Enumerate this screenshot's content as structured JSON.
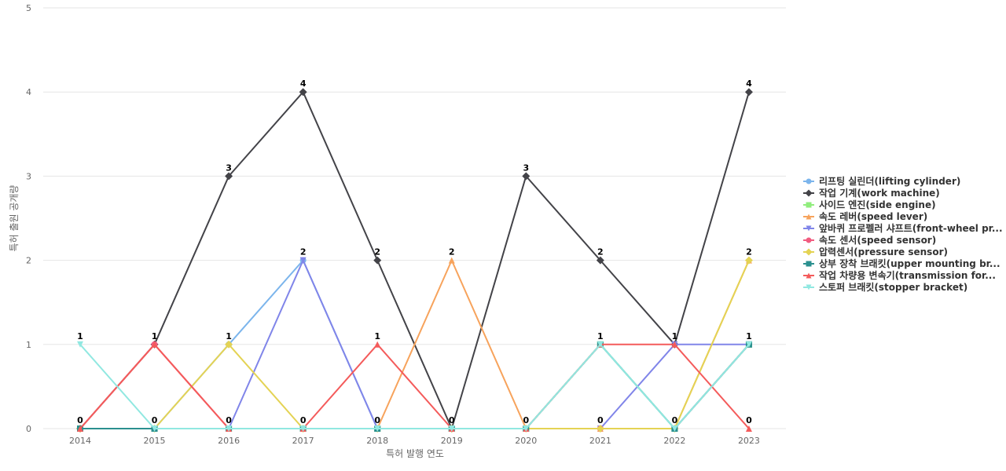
{
  "chart_data": {
    "type": "line",
    "xlabel": "특허 발행 연도",
    "ylabel": "특허 출원 공개량",
    "x": [
      "2014",
      "2015",
      "2016",
      "2017",
      "2018",
      "2019",
      "2020",
      "2021",
      "2022",
      "2023"
    ],
    "ylim": [
      0,
      5
    ],
    "yticks": [
      0,
      1,
      2,
      3,
      4,
      5
    ],
    "grid": true,
    "legend_position": "right",
    "series": [
      {
        "name": "리프팅 실린더(lifting cylinder)",
        "color": "#7cb5ec",
        "marker": "circle",
        "values": [
          0,
          0,
          1,
          2,
          0,
          0,
          0,
          1,
          0,
          1
        ]
      },
      {
        "name": "작업 기계(work machine)",
        "color": "#434348",
        "marker": "diamond",
        "values": [
          0,
          1,
          3,
          4,
          2,
          0,
          3,
          2,
          1,
          4
        ]
      },
      {
        "name": "사이드 엔진(side engine)",
        "color": "#90ed7d",
        "marker": "square",
        "values": [
          0,
          0,
          0,
          0,
          0,
          0,
          0,
          1,
          0,
          1
        ]
      },
      {
        "name": "속도 레버(speed lever)",
        "color": "#f7a35c",
        "marker": "triangle",
        "values": [
          0,
          0,
          0,
          0,
          0,
          2,
          0,
          0,
          0,
          2
        ]
      },
      {
        "name": "앞바퀴 프로펠러 샤프트(front-wheel pr...",
        "color": "#8085e9",
        "marker": "triangle-down",
        "values": [
          0,
          0,
          0,
          2,
          0,
          0,
          0,
          0,
          1,
          1
        ]
      },
      {
        "name": "속도 센서(speed sensor)",
        "color": "#f15c80",
        "marker": "circle",
        "values": [
          0,
          1,
          0,
          0,
          0,
          0,
          0,
          0,
          0,
          1
        ]
      },
      {
        "name": "압력센서(pressure sensor)",
        "color": "#e4d354",
        "marker": "diamond",
        "values": [
          0,
          0,
          1,
          0,
          0,
          0,
          0,
          0,
          0,
          2
        ]
      },
      {
        "name": "상부 장착 브래킷(upper mounting br...",
        "color": "#2b908f",
        "marker": "square",
        "values": [
          0,
          0,
          0,
          0,
          0,
          0,
          0,
          1,
          0,
          1
        ]
      },
      {
        "name": "작업 차량용 변속기(transmission for...",
        "color": "#f45b5b",
        "marker": "triangle",
        "values": [
          0,
          1,
          0,
          0,
          1,
          0,
          0,
          1,
          1,
          0
        ]
      },
      {
        "name": "스토퍼 브래킷(stopper bracket)",
        "color": "#91e8e1",
        "marker": "triangle-down",
        "values": [
          1,
          0,
          0,
          0,
          0,
          0,
          0,
          1,
          0,
          1
        ]
      }
    ],
    "data_labels": [
      {
        "x": "2014",
        "values": [
          1,
          0
        ]
      },
      {
        "x": "2015",
        "values": [
          1,
          0
        ]
      },
      {
        "x": "2016",
        "values": [
          3,
          1,
          0
        ]
      },
      {
        "x": "2017",
        "values": [
          4,
          2,
          0
        ]
      },
      {
        "x": "2018",
        "values": [
          2,
          1,
          0
        ]
      },
      {
        "x": "2019",
        "values": [
          2,
          0
        ]
      },
      {
        "x": "2020",
        "values": [
          3,
          0
        ]
      },
      {
        "x": "2021",
        "values": [
          2,
          1,
          0
        ]
      },
      {
        "x": "2022",
        "values": [
          1,
          0
        ]
      },
      {
        "x": "2023",
        "values": [
          4,
          2,
          1,
          0
        ]
      }
    ]
  }
}
